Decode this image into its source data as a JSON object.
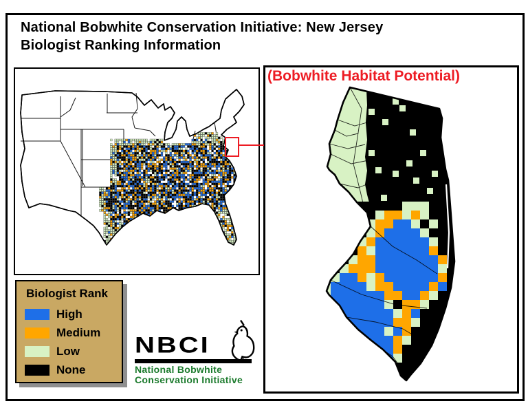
{
  "header": {
    "title_line1": "National Bobwhite Conservation Initiative: New Jersey",
    "title_line2": "Biologist Ranking Information"
  },
  "nj_map_panel": {
    "caption": "(Bobwhite Habitat Potential)",
    "caption_color": "#ed1c24"
  },
  "us_map_panel": {
    "highlight_color": "#ed1c24"
  },
  "legend": {
    "title": "Biologist Rank",
    "background_color": "#c9a863",
    "items": [
      {
        "label": "High",
        "color": "#1e6fe8"
      },
      {
        "label": "Medium",
        "color": "#ffa600"
      },
      {
        "label": "Low",
        "color": "#d8f2c4"
      },
      {
        "label": "None",
        "color": "#000000"
      }
    ]
  },
  "logo": {
    "acronym": "NBCI",
    "name_line1": "National Bobwhite",
    "name_line2": "Conservation Initiative",
    "text_color": "#1b7a2c"
  },
  "map_data": {
    "rank_colors": {
      "K": "#000000",
      "B": "#1e6fe8",
      "O": "#ffa600",
      "G": "#d8f2c4"
    },
    "nj_grid_rows": [
      "KKKKKKKKKGGGKKKK",
      "KKKKKKGOOGOGKKKK",
      "KKKKKGOOBBGKGKKK",
      "KKKKKGOBBBBGKKKK",
      "KKKKGOBBBBBBGKKK",
      "KKKKOGBBBBBBOKKK",
      "KKKGOOBBBBBBBOKK",
      "KKGOOOBBBBBBBGKK",
      "KGBBOGOBBBBBBOKK",
      "GBBBBGOOBBBBOBKK",
      "GBBBBBBOOBBOGKKK",
      "GBBBBBBGKOOGKKKK",
      ".BBBBBBBGOBKKKKK",
      ".GBBBBBBOOGKKKKK",
      "..BBBBBGBOKKKKKK",
      "..GBBBBBOGKKKKKK",
      "...GBBBBOKKKKKKK",
      "....GBBBGKKKKKKK",
      ".....GBGKKKKKKKK",
      "......GGKKKKKKKK",
      ".......KKK......"
    ]
  }
}
